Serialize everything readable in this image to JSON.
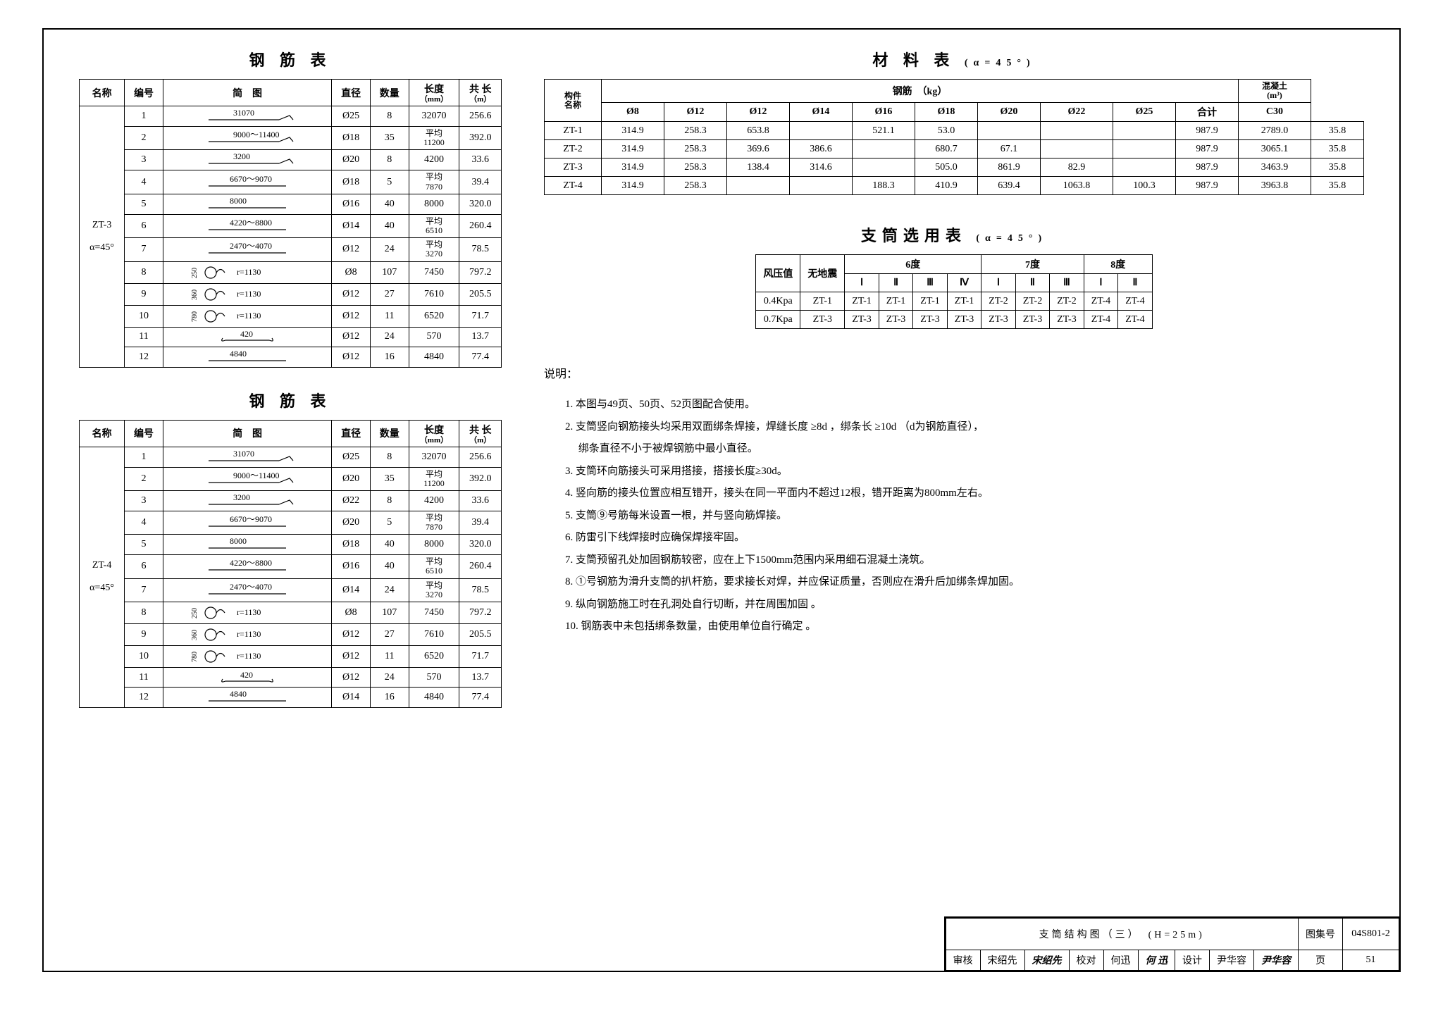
{
  "rebar_tables": [
    {
      "title": "钢 筋 表",
      "name_cell": "ZT-3",
      "alpha_cell": "α=45°",
      "headers": [
        "名称",
        "编号",
        "简　图",
        "直径",
        "数量",
        "长度",
        "共 长"
      ],
      "sub_headers": [
        "",
        "",
        "",
        "",
        "",
        "（mm）",
        "（m）"
      ],
      "rows": [
        {
          "no": "1",
          "diag": "31070",
          "diag_type": "hook",
          "dia": "Ø25",
          "qty": "8",
          "len": "32070",
          "total": "256.6"
        },
        {
          "no": "2",
          "diag": "9000～11400",
          "diag_type": "hook",
          "dia": "Ø18",
          "qty": "35",
          "len": "平均\n11200",
          "total": "392.0"
        },
        {
          "no": "3",
          "diag": "3200",
          "diag_type": "hook",
          "dia": "Ø20",
          "qty": "8",
          "len": "4200",
          "total": "33.6"
        },
        {
          "no": "4",
          "diag": "6670～9070",
          "diag_type": "plain",
          "dia": "Ø18",
          "qty": "5",
          "len": "平均\n7870",
          "total": "39.4"
        },
        {
          "no": "5",
          "diag": "8000",
          "diag_type": "line",
          "dia": "Ø16",
          "qty": "40",
          "len": "8000",
          "total": "320.0"
        },
        {
          "no": "6",
          "diag": "4220～8800",
          "diag_type": "plain",
          "dia": "Ø14",
          "qty": "40",
          "len": "平均\n6510",
          "total": "260.4"
        },
        {
          "no": "7",
          "diag": "2470～4070",
          "diag_type": "plain",
          "dia": "Ø12",
          "qty": "24",
          "len": "平均\n3270",
          "total": "78.5"
        },
        {
          "no": "8",
          "diag": "r=1130",
          "diag_type": "ring",
          "ring": "250",
          "dia": "Ø8",
          "qty": "107",
          "len": "7450",
          "total": "797.2"
        },
        {
          "no": "9",
          "diag": "r=1130",
          "diag_type": "ring",
          "ring": "360",
          "dia": "Ø12",
          "qty": "27",
          "len": "7610",
          "total": "205.5"
        },
        {
          "no": "10",
          "diag": "r=1130",
          "diag_type": "ring",
          "ring": "780",
          "dia": "Ø12",
          "qty": "11",
          "len": "6520",
          "total": "71.7"
        },
        {
          "no": "11",
          "diag": "420",
          "diag_type": "tie",
          "dia": "Ø12",
          "qty": "24",
          "len": "570",
          "total": "13.7"
        },
        {
          "no": "12",
          "diag": "4840",
          "diag_type": "line",
          "dia": "Ø12",
          "qty": "16",
          "len": "4840",
          "total": "77.4"
        }
      ]
    },
    {
      "title": "钢 筋 表",
      "name_cell": "ZT-4",
      "alpha_cell": "α=45°",
      "headers": [
        "名称",
        "编号",
        "简　图",
        "直径",
        "数量",
        "长度",
        "共 长"
      ],
      "sub_headers": [
        "",
        "",
        "",
        "",
        "",
        "（mm）",
        "（m）"
      ],
      "rows": [
        {
          "no": "1",
          "diag": "31070",
          "diag_type": "hook",
          "dia": "Ø25",
          "qty": "8",
          "len": "32070",
          "total": "256.6"
        },
        {
          "no": "2",
          "diag": "9000～11400",
          "diag_type": "hook",
          "dia": "Ø20",
          "qty": "35",
          "len": "平均\n11200",
          "total": "392.0"
        },
        {
          "no": "3",
          "diag": "3200",
          "diag_type": "hook",
          "dia": "Ø22",
          "qty": "8",
          "len": "4200",
          "total": "33.6"
        },
        {
          "no": "4",
          "diag": "6670～9070",
          "diag_type": "plain",
          "dia": "Ø20",
          "qty": "5",
          "len": "平均\n7870",
          "total": "39.4"
        },
        {
          "no": "5",
          "diag": "8000",
          "diag_type": "line",
          "dia": "Ø18",
          "qty": "40",
          "len": "8000",
          "total": "320.0"
        },
        {
          "no": "6",
          "diag": "4220～8800",
          "diag_type": "plain",
          "dia": "Ø16",
          "qty": "40",
          "len": "平均\n6510",
          "total": "260.4"
        },
        {
          "no": "7",
          "diag": "2470～4070",
          "diag_type": "plain",
          "dia": "Ø14",
          "qty": "24",
          "len": "平均\n3270",
          "total": "78.5"
        },
        {
          "no": "8",
          "diag": "r=1130",
          "diag_type": "ring",
          "ring": "250",
          "dia": "Ø8",
          "qty": "107",
          "len": "7450",
          "total": "797.2"
        },
        {
          "no": "9",
          "diag": "r=1130",
          "diag_type": "ring",
          "ring": "360",
          "dia": "Ø12",
          "qty": "27",
          "len": "7610",
          "total": "205.5"
        },
        {
          "no": "10",
          "diag": "r=1130",
          "diag_type": "ring",
          "ring": "780",
          "dia": "Ø12",
          "qty": "11",
          "len": "6520",
          "total": "71.7"
        },
        {
          "no": "11",
          "diag": "420",
          "diag_type": "tie",
          "dia": "Ø12",
          "qty": "24",
          "len": "570",
          "total": "13.7"
        },
        {
          "no": "12",
          "diag": "4840",
          "diag_type": "line",
          "dia": "Ø14",
          "qty": "16",
          "len": "4840",
          "total": "77.4"
        }
      ]
    }
  ],
  "material_table": {
    "title": "材 料 表",
    "title_suffix": "(α=45°)",
    "header1": [
      "构件\n名称",
      "钢筋　（kg）",
      "混凝土\n(m³)"
    ],
    "header2": [
      "Ø8",
      "Ø12",
      "Ø12",
      "Ø14",
      "Ø16",
      "Ø18",
      "Ø20",
      "Ø22",
      "Ø25",
      "合计",
      "C30"
    ],
    "rows": [
      [
        "ZT-1",
        "314.9",
        "258.3",
        "653.8",
        "",
        "521.1",
        "53.0",
        "",
        "",
        "",
        "987.9",
        "2789.0",
        "35.8"
      ],
      [
        "ZT-2",
        "314.9",
        "258.3",
        "369.6",
        "386.6",
        "",
        "680.7",
        "67.1",
        "",
        "",
        "987.9",
        "3065.1",
        "35.8"
      ],
      [
        "ZT-3",
        "314.9",
        "258.3",
        "138.4",
        "314.6",
        "",
        "505.0",
        "861.9",
        "82.9",
        "",
        "987.9",
        "3463.9",
        "35.8"
      ],
      [
        "ZT-4",
        "314.9",
        "258.3",
        "",
        "",
        "188.3",
        "410.9",
        "639.4",
        "1063.8",
        "100.3",
        "987.9",
        "3963.8",
        "35.8"
      ]
    ]
  },
  "selection_table": {
    "title": "支筒选用表",
    "title_suffix": "(α=45°)",
    "header1": [
      "风压值",
      "无地震",
      "6度",
      "7度",
      "8度"
    ],
    "header2": [
      "Ⅰ",
      "Ⅱ",
      "Ⅲ",
      "Ⅳ",
      "Ⅰ",
      "Ⅱ",
      "Ⅲ",
      "Ⅰ",
      "Ⅱ"
    ],
    "rows": [
      [
        "0.4Kpa",
        "ZT-1",
        "ZT-1",
        "ZT-1",
        "ZT-1",
        "ZT-1",
        "ZT-2",
        "ZT-2",
        "ZT-2",
        "ZT-4",
        "ZT-4"
      ],
      [
        "0.7Kpa",
        "ZT-3",
        "ZT-3",
        "ZT-3",
        "ZT-3",
        "ZT-3",
        "ZT-3",
        "ZT-3",
        "ZT-3",
        "ZT-4",
        "ZT-4"
      ]
    ]
  },
  "notes": {
    "title": "说明：",
    "items": [
      "1. 本图与49页、50页、52页图配合使用。",
      "2. 支筒竖向钢筋接头均采用双面绑条焊接，焊缝长度 ≥8d ，绑条长 ≥10d （d为钢筋直径），\n　 绑条直径不小于被焊钢筋中最小直径。",
      "3. 支筒环向筋接头可采用搭接，搭接长度≥30d。",
      "4. 竖向筋的接头位置应相互错开，接头在同一平面内不超过12根，错开距离为800mm左右。",
      "5. 支筒⑨号筋每米设置一根，并与竖向筋焊接。",
      "6. 防雷引下线焊接时应确保焊接牢固。",
      "7. 支筒预留孔处加固钢筋较密，应在上下1500mm范围内采用细石混凝土浇筑。",
      "8. ①号钢筋为滑升支筒的扒杆筋，要求接长对焊，并应保证质量，否则应在滑升后加绑条焊加固。",
      "9. 纵向钢筋施工时在孔洞处自行切断，并在周围加固 。",
      "10. 钢筋表中未包括绑条数量，由使用单位自行确定 。"
    ]
  },
  "title_block": {
    "main": "支筒结构图（三）　(H=25m)",
    "fields": [
      [
        "审核",
        "宋绍先",
        "宋绍先",
        "校对",
        "何迅",
        "何 迅",
        "设计",
        "尹华容",
        "尹华容",
        "页",
        "51"
      ],
      [
        "图集号",
        "04S801-2"
      ]
    ]
  }
}
